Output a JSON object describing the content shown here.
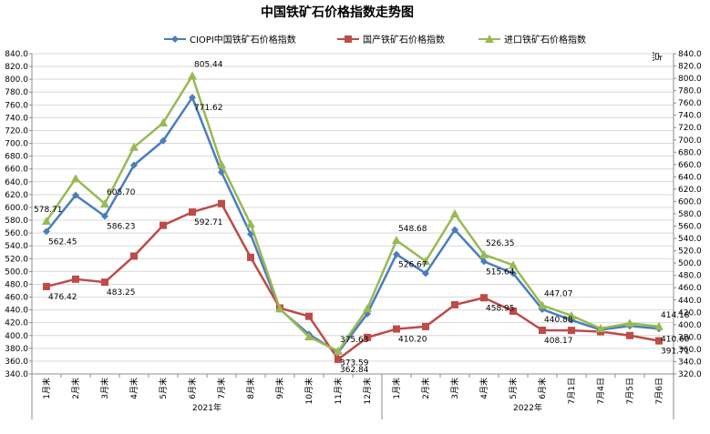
{
  "chart_data": {
    "type": "line",
    "title": "中国铁矿石价格指数走势图",
    "unit_label": "点",
    "ylim": [
      340,
      840
    ],
    "y_ticks": [
      "340.0",
      "360.0",
      "380.0",
      "400.0",
      "420.0",
      "440.0",
      "460.0",
      "480.0",
      "500.0",
      "520.0",
      "540.0",
      "560.0",
      "580.0",
      "600.0",
      "620.0",
      "640.0",
      "660.0",
      "680.0",
      "700.0",
      "720.0",
      "740.0",
      "760.0",
      "780.0",
      "800.0",
      "820.0",
      "840.0"
    ],
    "y2lim": [
      320,
      840
    ],
    "y2_ticks": [
      "320.0",
      "340.0",
      "360.0",
      "380.0",
      "400.0",
      "420.0",
      "440.0",
      "460.0",
      "480.0",
      "500.0",
      "520.0",
      "540.0",
      "560.0",
      "580.0",
      "600.0",
      "620.0",
      "640.0",
      "660.0",
      "680.0",
      "700.0",
      "720.0",
      "740.0",
      "760.0",
      "780.0",
      "800.0",
      "820.0",
      "840.0"
    ],
    "categories": [
      "1月末",
      "2月末",
      "3月末",
      "4月末",
      "5月末",
      "6月末",
      "7月末",
      "8月末",
      "9月末",
      "10月末",
      "11月末",
      "12月末",
      "1月末",
      "2月末",
      "3月末",
      "4月末",
      "5月末",
      "6月末",
      "7月1日",
      "7月4日",
      "7月5日",
      "7月6日"
    ],
    "groups": [
      {
        "label": "2021年",
        "start": 0,
        "end": 11
      },
      {
        "label": "2022年",
        "start": 12,
        "end": 21
      }
    ],
    "series": [
      {
        "name": "CIOPI中国铁矿石价格指数",
        "color": "#4a7ebb",
        "marker": "diamond",
        "values": [
          562.45,
          619,
          586.23,
          666,
          704,
          771.62,
          655,
          558,
          441,
          402,
          373.59,
          434,
          526.67,
          497,
          565,
          515.64,
          497,
          440.88,
          424,
          409,
          415,
          410.6
        ],
        "labels": [
          {
            "i": 0,
            "text": "562.45"
          },
          {
            "i": 2,
            "text": "586.23"
          },
          {
            "i": 5,
            "text": "771.62"
          },
          {
            "i": 10,
            "text": "373.59"
          },
          {
            "i": 12,
            "text": "526.67"
          },
          {
            "i": 15,
            "text": "515.64"
          },
          {
            "i": 17,
            "text": "440.88"
          },
          {
            "i": 21,
            "text": "410.60"
          }
        ]
      },
      {
        "name": "国产铁矿石价格指数",
        "color": "#be4b48",
        "marker": "square",
        "values": [
          476.42,
          488,
          483.25,
          524,
          572,
          592.71,
          606,
          522,
          443,
          430,
          362.84,
          397,
          410.2,
          414,
          448,
          458.95,
          438,
          408.17,
          408,
          406,
          400,
          391.71
        ],
        "labels": [
          {
            "i": 0,
            "text": "476.42"
          },
          {
            "i": 2,
            "text": "483.25"
          },
          {
            "i": 5,
            "text": "592.71"
          },
          {
            "i": 10,
            "text": "362.84"
          },
          {
            "i": 12,
            "text": "410.20"
          },
          {
            "i": 15,
            "text": "458.95"
          },
          {
            "i": 17,
            "text": "408.17"
          },
          {
            "i": 21,
            "text": "391.71"
          }
        ]
      },
      {
        "name": "进口铁矿石价格指数",
        "color": "#98b954",
        "marker": "triangle",
        "values": [
          578.71,
          645,
          605.7,
          694,
          732,
          805.44,
          667,
          574,
          442,
          398,
          375.63,
          442,
          548.68,
          516,
          590,
          526.35,
          510,
          447.07,
          431,
          411,
          419,
          414.18
        ],
        "labels": [
          {
            "i": 0,
            "text": "578.71"
          },
          {
            "i": 2,
            "text": "605.70"
          },
          {
            "i": 5,
            "text": "805.44"
          },
          {
            "i": 10,
            "text": "375.63"
          },
          {
            "i": 12,
            "text": "548.68"
          },
          {
            "i": 15,
            "text": "526.35"
          },
          {
            "i": 17,
            "text": "447.07"
          },
          {
            "i": 21,
            "text": "414.18"
          }
        ]
      }
    ]
  }
}
